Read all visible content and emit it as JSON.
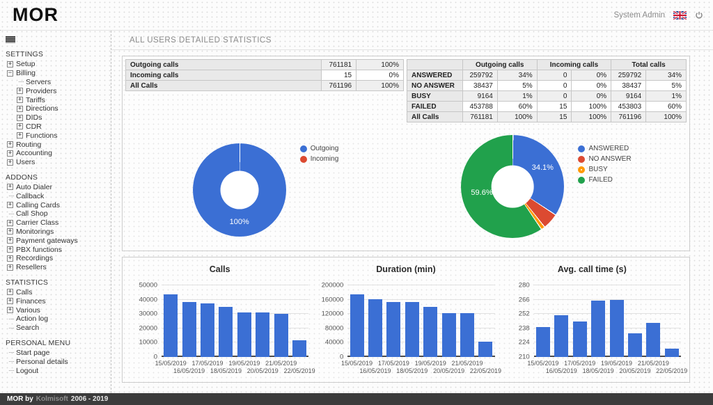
{
  "header": {
    "logo": "MOR",
    "user": "System Admin"
  },
  "page": {
    "title": "ALL USERS DETAILED STATISTICS"
  },
  "footer": {
    "brand": "MOR by",
    "company": "Kolmisoft",
    "years": "2006 - 2019"
  },
  "icons": {
    "menu_toggle": "hamburger",
    "language_flag": "uk-flag",
    "power": "power-button",
    "tree_expand": "plus-box",
    "tree_collapse": "minus-box"
  },
  "colors": {
    "blue": "#3b6fd4",
    "red": "#dc4a31",
    "orange": "#ff9900",
    "green": "#21a14c",
    "footer_bg": "#3c3c3c"
  },
  "sidebar": {
    "sections": [
      {
        "title": "SETTINGS",
        "items": [
          {
            "label": "Setup",
            "state": "plus",
            "depth": 0
          },
          {
            "label": "Billing",
            "state": "minus",
            "depth": 0
          },
          {
            "label": "Servers",
            "state": "leaf",
            "depth": 1
          },
          {
            "label": "Providers",
            "state": "plus",
            "depth": 1
          },
          {
            "label": "Tariffs",
            "state": "plus",
            "depth": 1
          },
          {
            "label": "Directions",
            "state": "plus",
            "depth": 1
          },
          {
            "label": "DIDs",
            "state": "plus",
            "depth": 1
          },
          {
            "label": "CDR",
            "state": "plus",
            "depth": 1
          },
          {
            "label": "Functions",
            "state": "plus",
            "depth": 1
          },
          {
            "label": "Routing",
            "state": "plus",
            "depth": 0
          },
          {
            "label": "Accounting",
            "state": "plus",
            "depth": 0
          },
          {
            "label": "Users",
            "state": "plus",
            "depth": 0
          }
        ]
      },
      {
        "title": "ADDONS",
        "items": [
          {
            "label": "Auto Dialer",
            "state": "plus",
            "depth": 0
          },
          {
            "label": "Callback",
            "state": "leaf",
            "depth": 0
          },
          {
            "label": "Calling Cards",
            "state": "plus",
            "depth": 0
          },
          {
            "label": "Call Shop",
            "state": "leaf",
            "depth": 0
          },
          {
            "label": "Carrier Class",
            "state": "plus",
            "depth": 0
          },
          {
            "label": "Monitorings",
            "state": "plus",
            "depth": 0
          },
          {
            "label": "Payment gateways",
            "state": "plus",
            "depth": 0
          },
          {
            "label": "PBX functions",
            "state": "plus",
            "depth": 0
          },
          {
            "label": "Recordings",
            "state": "plus",
            "depth": 0
          },
          {
            "label": "Resellers",
            "state": "plus",
            "depth": 0
          }
        ]
      },
      {
        "title": "STATISTICS",
        "items": [
          {
            "label": "Calls",
            "state": "plus",
            "depth": 0
          },
          {
            "label": "Finances",
            "state": "plus",
            "depth": 0
          },
          {
            "label": "Various",
            "state": "plus",
            "depth": 0
          },
          {
            "label": "Action log",
            "state": "leaf",
            "depth": 0
          },
          {
            "label": "Search",
            "state": "leaf",
            "depth": 0
          }
        ]
      },
      {
        "title": "PERSONAL MENU",
        "items": [
          {
            "label": "Start page",
            "state": "leaf",
            "depth": 0
          },
          {
            "label": "Personal details",
            "state": "leaf",
            "depth": 0
          },
          {
            "label": "Logout",
            "state": "leaf",
            "depth": 0
          }
        ]
      }
    ]
  },
  "summary_table": {
    "rows": [
      [
        "Outgoing calls",
        "761181",
        "100%"
      ],
      [
        "Incoming calls",
        "15",
        "0%"
      ],
      [
        "All Calls",
        "761196",
        "100%"
      ]
    ]
  },
  "detail_table": {
    "headers": [
      "",
      "Outgoing calls",
      "Incoming calls",
      "Total calls"
    ],
    "rows": [
      [
        "ANSWERED",
        "259792",
        "34%",
        "0",
        "0%",
        "259792",
        "34%"
      ],
      [
        "NO ANSWER",
        "38437",
        "5%",
        "0",
        "0%",
        "38437",
        "5%"
      ],
      [
        "BUSY",
        "9164",
        "1%",
        "0",
        "0%",
        "9164",
        "1%"
      ],
      [
        "FAILED",
        "453788",
        "60%",
        "15",
        "100%",
        "453803",
        "60%"
      ],
      [
        "All Calls",
        "761181",
        "100%",
        "15",
        "100%",
        "761196",
        "100%"
      ]
    ]
  },
  "chart_data": [
    {
      "type": "pie",
      "name": "calls-by-direction",
      "donut": true,
      "legend_position": "right",
      "slices": [
        {
          "label": "Outgoing",
          "value": 761181,
          "color": "#3b6fd4",
          "pattern": false
        },
        {
          "label": "Incoming",
          "value": 15,
          "color": "#dc4a31",
          "pattern": false
        }
      ],
      "labels_visible": [
        {
          "text": "100%",
          "slice": "Outgoing"
        }
      ]
    },
    {
      "type": "pie",
      "name": "calls-by-status",
      "donut": true,
      "legend_position": "right",
      "slices": [
        {
          "label": "ANSWERED",
          "value": 259792,
          "color": "#3b6fd4",
          "pattern": false
        },
        {
          "label": "NO ANSWER",
          "value": 38437,
          "color": "#dc4a31",
          "pattern": false
        },
        {
          "label": "BUSY",
          "value": 9164,
          "color": "#ff9900",
          "pattern": true
        },
        {
          "label": "FAILED",
          "value": 453803,
          "color": "#21a14c",
          "pattern": false
        }
      ],
      "labels_visible": [
        {
          "text": "34.1%",
          "slice": "ANSWERED"
        },
        {
          "text": "59.6%",
          "slice": "FAILED"
        }
      ]
    },
    {
      "type": "bar",
      "title": "Calls",
      "categories": [
        "15/05/2019",
        "16/05/2019",
        "17/05/2019",
        "18/05/2019",
        "19/05/2019",
        "20/05/2019",
        "21/05/2019",
        "22/05/2019"
      ],
      "values": [
        43800,
        38300,
        37400,
        34800,
        31300,
        31300,
        30100,
        11500
      ],
      "bar_color": "#3b6fd4",
      "ylim": [
        0,
        50000
      ],
      "yticks": [
        "0",
        "10000",
        "20000",
        "30000",
        "40000",
        "50000"
      ],
      "grid": true
    },
    {
      "type": "bar",
      "title": "Duration (min)",
      "categories": [
        "15/05/2019",
        "16/05/2019",
        "17/05/2019",
        "18/05/2019",
        "19/05/2019",
        "20/05/2019",
        "21/05/2019",
        "22/05/2019"
      ],
      "values": [
        175000,
        161000,
        154000,
        154000,
        140000,
        122000,
        122000,
        42000
      ],
      "bar_color": "#3b6fd4",
      "ylim": [
        0,
        200000
      ],
      "yticks": [
        "0",
        "40000",
        "80000",
        "120000",
        "160000",
        "200000"
      ],
      "grid": true
    },
    {
      "type": "bar",
      "title": "Avg. call time (s)",
      "categories": [
        "15/05/2019",
        "16/05/2019",
        "17/05/2019",
        "18/05/2019",
        "19/05/2019",
        "20/05/2019",
        "21/05/2019",
        "22/05/2019"
      ],
      "values": [
        239,
        251,
        245,
        265,
        266,
        233,
        243,
        218
      ],
      "bar_color": "#3b6fd4",
      "ylim": [
        210,
        280
      ],
      "yticks": [
        "210",
        "224",
        "238",
        "252",
        "266",
        "280"
      ],
      "grid": true
    }
  ]
}
